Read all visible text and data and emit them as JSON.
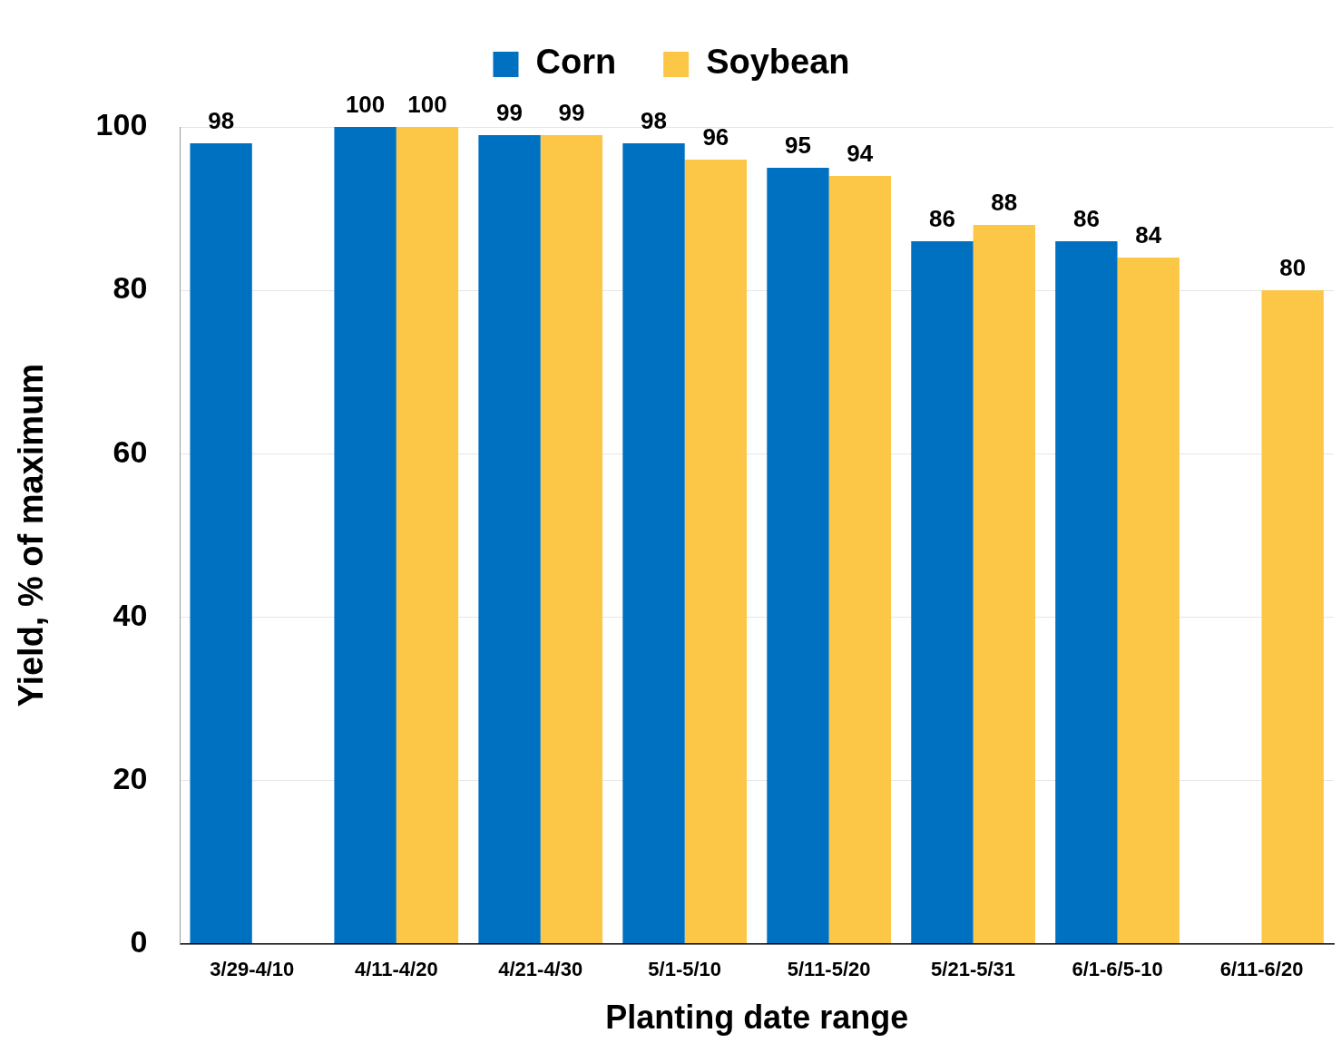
{
  "chart_data": {
    "type": "bar",
    "xlabel": "Planting date range",
    "ylabel": "Yield, % of maximum",
    "categories": [
      "3/29-4/10",
      "4/11-4/20",
      "4/21-4/30",
      "5/1-5/10",
      "5/11-5/20",
      "5/21-5/31",
      "6/1-6/5-10",
      "6/11-6/20"
    ],
    "series": [
      {
        "name": "Corn",
        "color": "#0070c0",
        "values": [
          98,
          100,
          99,
          98,
          95,
          86,
          86,
          null
        ]
      },
      {
        "name": "Soybean",
        "color": "#fcc646",
        "values": [
          null,
          100,
          99,
          96,
          94,
          88,
          84,
          80
        ]
      }
    ],
    "ylim": [
      0,
      100
    ],
    "yticks": [
      0,
      20,
      40,
      60,
      80,
      100
    ],
    "grid": "y",
    "legend": "top",
    "data_labels": true
  }
}
